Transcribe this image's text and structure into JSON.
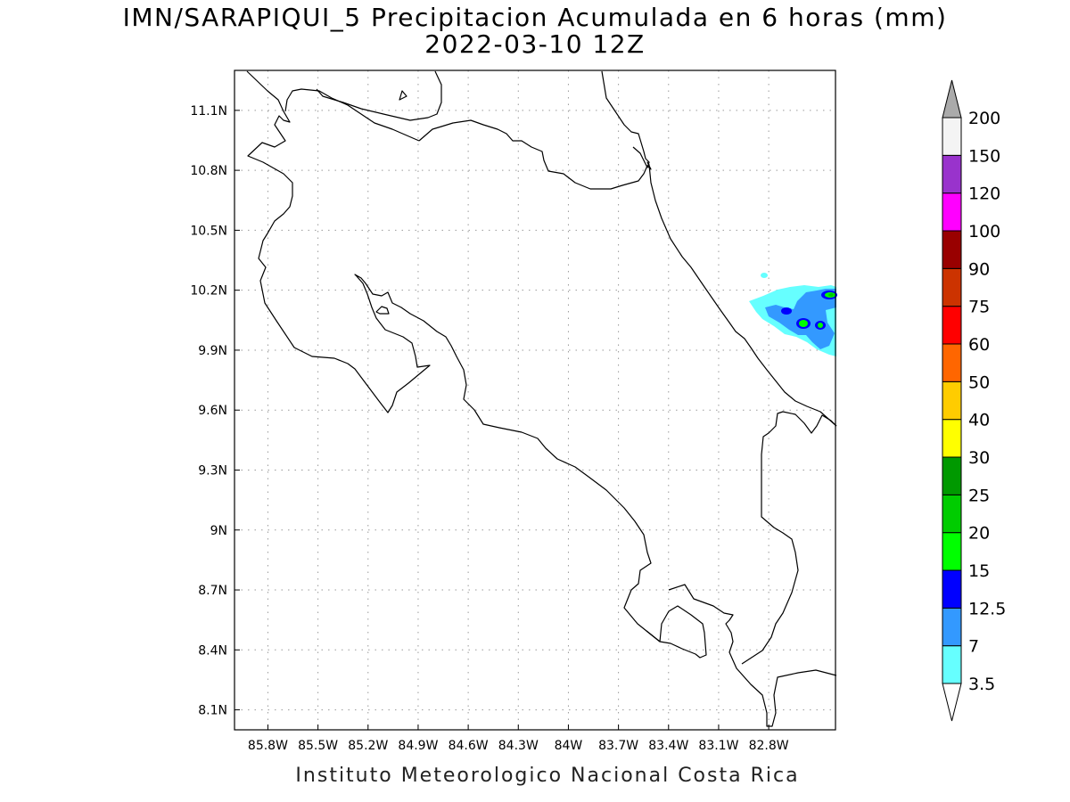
{
  "title": {
    "line1": "IMN/SARAPIQUI_5 Precipitacion Acumulada en 6 horas (mm)",
    "line2": "2022-03-10 12Z"
  },
  "credit": "Instituto Meteorologico Nacional Costa Rica",
  "map": {
    "lon_range": [
      -86.0,
      -82.4
    ],
    "lat_range": [
      8.0,
      11.3
    ],
    "lon_ticks": [
      {
        "v": -85.8,
        "label": "85.8W"
      },
      {
        "v": -85.5,
        "label": "85.5W"
      },
      {
        "v": -85.2,
        "label": "85.2W"
      },
      {
        "v": -84.9,
        "label": "84.9W"
      },
      {
        "v": -84.6,
        "label": "84.6W"
      },
      {
        "v": -84.3,
        "label": "84.3W"
      },
      {
        "v": -84.0,
        "label": "84W"
      },
      {
        "v": -83.7,
        "label": "83.7W"
      },
      {
        "v": -83.4,
        "label": "83.4W"
      },
      {
        "v": -83.1,
        "label": "83.1W"
      },
      {
        "v": -82.8,
        "label": "82.8W"
      }
    ],
    "lat_ticks": [
      {
        "v": 11.1,
        "label": "11.1N"
      },
      {
        "v": 10.8,
        "label": "10.8N"
      },
      {
        "v": 10.5,
        "label": "10.5N"
      },
      {
        "v": 10.2,
        "label": "10.2N"
      },
      {
        "v": 9.9,
        "label": "9.9N"
      },
      {
        "v": 9.6,
        "label": "9.6N"
      },
      {
        "v": 9.3,
        "label": "9.3N"
      },
      {
        "v": 9.0,
        "label": "9N"
      },
      {
        "v": 8.7,
        "label": "8.7N"
      },
      {
        "v": 8.4,
        "label": "8.4N"
      },
      {
        "v": 8.1,
        "label": "8.1N"
      }
    ],
    "grid": true
  },
  "colorbar": {
    "levels": [
      "3.5",
      "7",
      "12.5",
      "15",
      "20",
      "25",
      "30",
      "40",
      "50",
      "60",
      "75",
      "90",
      "100",
      "120",
      "150",
      "200"
    ],
    "colors": [
      "#ffffff",
      "#66ffff",
      "#3399ff",
      "#0000ff",
      "#00ff00",
      "#00cc00",
      "#009900",
      "#ffff00",
      "#ffcc00",
      "#ff6600",
      "#ff0000",
      "#cc3300",
      "#990000",
      "#ff00ff",
      "#9933cc",
      "#f4f4f4",
      "#aaaaaa"
    ]
  }
}
